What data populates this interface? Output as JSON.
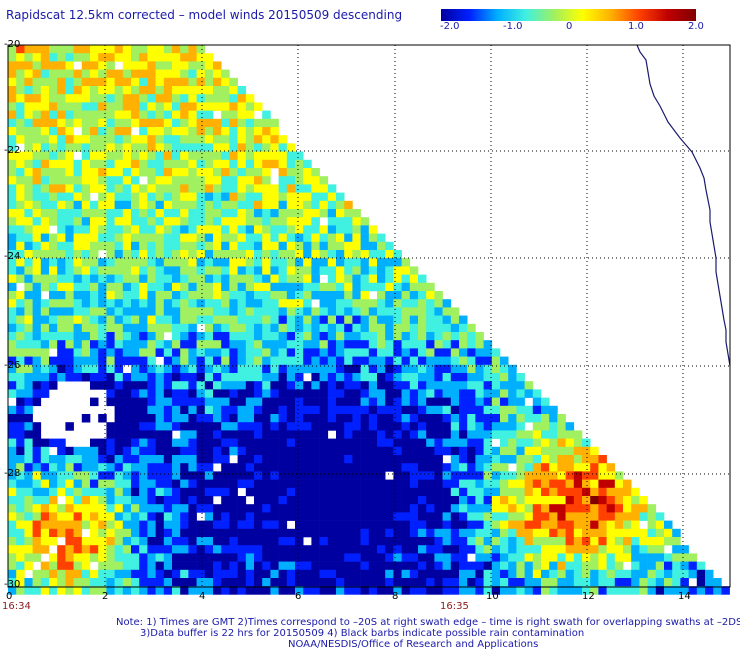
{
  "title": "Rapidscat 12.5km corrected – model winds 20150509 descending",
  "colorbar": {
    "ticks": [
      "-2.0",
      "-1.0",
      "0",
      "1.0",
      "2.0"
    ],
    "range": [
      -2.0,
      2.0
    ],
    "colors": [
      "#0000a0",
      "#0020ff",
      "#00b0ff",
      "#40f0e0",
      "#a0f060",
      "#ffff00",
      "#ffb000",
      "#ff4000",
      "#c00000",
      "#800000"
    ]
  },
  "axes": {
    "y_labels": [
      "-20",
      "-22",
      "-24",
      "-26",
      "-28",
      "-30"
    ],
    "x_labels": [
      "0",
      "2",
      "4",
      "6",
      "8",
      "10",
      "12",
      "14"
    ]
  },
  "times": {
    "t1": "16:34",
    "t2": "16:35"
  },
  "notes": {
    "line1": "Note: 1) Times are GMT 2)Times correspond to –20S at right swath edge – time is right swath for overlapping swaths at –2DS",
    "line2": "3)Data buffer is 22 hrs for 20150509 4) Black barbs indicate possible rain contamination",
    "line3": "NOAA/NESDIS/Office of Research and Applications"
  },
  "colors": {
    "coast": "#1a1a6e",
    "grid": "#000000",
    "text": "#1a1aa8"
  }
}
